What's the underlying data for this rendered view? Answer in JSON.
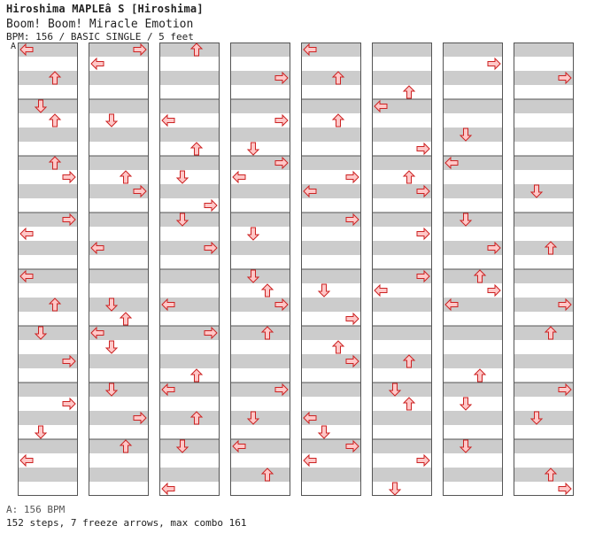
{
  "header": {
    "title": "Hiroshima MAPLEâ  S [Hiroshima]",
    "song": "Boom! Boom! Miracle Emotion",
    "info": "BPM: 156 / BASIC SINGLE / 5 feet"
  },
  "marker": {
    "label": "A"
  },
  "footer": {
    "legend": "A: 156 BPM",
    "stats": "152 steps, 7 freeze arrows, max combo 161"
  },
  "colors": {
    "stripe": "#cccccc",
    "border": "#555555",
    "arrow_fill": "#ffc8c8",
    "arrow_stroke": "#cc2222",
    "freeze_fill": "#c8ffc8",
    "freeze_stroke": "#339933"
  },
  "chart": {
    "columns": 8,
    "measures_per_column": 8,
    "lanes": [
      "left",
      "down",
      "up",
      "right"
    ],
    "steps": [
      [
        1,
        0,
        1,
        0
      ],
      [
        0,
        1,
        1,
        0
      ],
      [
        0,
        0,
        1,
        1
      ],
      [
        1,
        0,
        0,
        1
      ],
      [
        1,
        0,
        1,
        0
      ],
      [
        0,
        1,
        0,
        1
      ],
      [
        0,
        1,
        0,
        1
      ],
      [
        1,
        0,
        0,
        0
      ],
      [
        1,
        0,
        0,
        1
      ],
      [
        0,
        1,
        0,
        0
      ],
      [
        0,
        0,
        1,
        1
      ],
      [
        1,
        0,
        0,
        0
      ],
      [
        0,
        1,
        1,
        0
      ],
      [
        1,
        1,
        0,
        0
      ],
      [
        0,
        1,
        0,
        1
      ],
      [
        0,
        0,
        1,
        0
      ],
      [
        0,
        0,
        1,
        0
      ],
      [
        1,
        0,
        1,
        0
      ],
      [
        0,
        1,
        0,
        1
      ],
      [
        0,
        1,
        0,
        1
      ],
      [
        1,
        0,
        0,
        0
      ],
      [
        0,
        0,
        1,
        1
      ],
      [
        1,
        0,
        1,
        0
      ],
      [
        1,
        1,
        0,
        0
      ],
      [
        0,
        0,
        0,
        1
      ],
      [
        0,
        1,
        0,
        1
      ],
      [
        1,
        0,
        0,
        1
      ],
      [
        0,
        1,
        0,
        0
      ],
      [
        0,
        1,
        1,
        1
      ],
      [
        0,
        0,
        1,
        0
      ],
      [
        0,
        1,
        0,
        1
      ],
      [
        1,
        0,
        1,
        0
      ],
      [
        1,
        0,
        1,
        0
      ],
      [
        0,
        0,
        1,
        0
      ],
      [
        1,
        0,
        0,
        1
      ],
      [
        0,
        0,
        0,
        1
      ],
      [
        0,
        1,
        0,
        1
      ],
      [
        0,
        0,
        1,
        1
      ],
      [
        1,
        1,
        0,
        0
      ],
      [
        1,
        0,
        0,
        1
      ],
      [
        0,
        0,
        1,
        0
      ],
      [
        1,
        0,
        0,
        1
      ],
      [
        0,
        0,
        1,
        1
      ],
      [
        0,
        0,
        0,
        1
      ],
      [
        1,
        0,
        0,
        1
      ],
      [
        0,
        0,
        1,
        0
      ],
      [
        0,
        1,
        1,
        0
      ],
      [
        0,
        1,
        0,
        1
      ],
      [
        0,
        0,
        0,
        1
      ],
      [
        0,
        1,
        0,
        0
      ],
      [
        1,
        0,
        0,
        0
      ],
      [
        0,
        1,
        0,
        1
      ],
      [
        1,
        0,
        1,
        1
      ],
      [
        0,
        0,
        1,
        0
      ],
      [
        0,
        1,
        0,
        0
      ],
      [
        0,
        1,
        0,
        0
      ],
      [
        0,
        0,
        0,
        1
      ],
      [
        0,
        0,
        0,
        0
      ],
      [
        0,
        1,
        0,
        0
      ],
      [
        0,
        0,
        1,
        0
      ],
      [
        0,
        0,
        0,
        1
      ],
      [
        0,
        0,
        1,
        0
      ],
      [
        0,
        1,
        0,
        1
      ],
      [
        0,
        0,
        1,
        1
      ]
    ]
  }
}
